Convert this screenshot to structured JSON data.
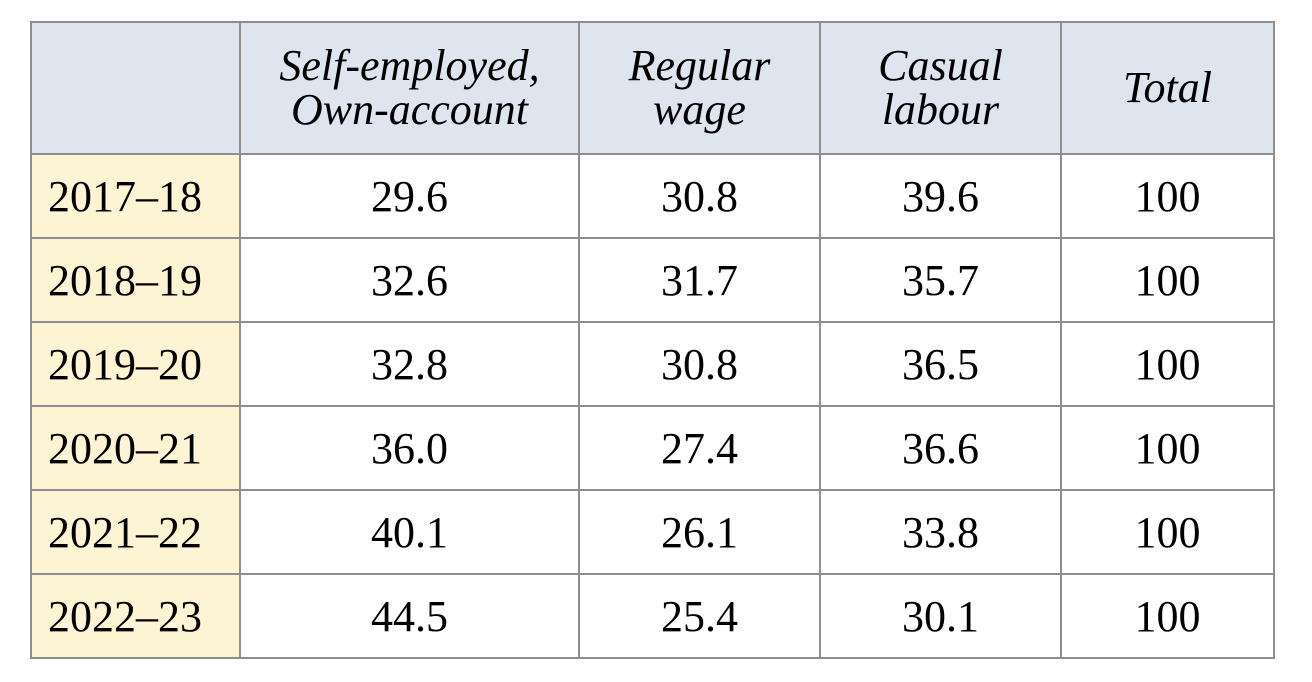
{
  "table": {
    "headers": {
      "corner": "",
      "self_employed": [
        "Self-employed,",
        "Own-account"
      ],
      "regular_wage": [
        "Regular",
        "wage"
      ],
      "casual_labour": [
        "Casual",
        "labour"
      ],
      "total": "Total"
    },
    "rows": [
      {
        "year": "2017–18",
        "self_employed": "29.6",
        "regular_wage": "30.8",
        "casual_labour": "39.6",
        "total": "100"
      },
      {
        "year": "2018–19",
        "self_employed": "32.6",
        "regular_wage": "31.7",
        "casual_labour": "35.7",
        "total": "100"
      },
      {
        "year": "2019–20",
        "self_employed": "32.8",
        "regular_wage": "30.8",
        "casual_labour": "36.5",
        "total": "100"
      },
      {
        "year": "2020–21",
        "self_employed": "36.0",
        "regular_wage": "27.4",
        "casual_labour": "36.6",
        "total": "100"
      },
      {
        "year": "2021–22",
        "self_employed": "40.1",
        "regular_wage": "26.1",
        "casual_labour": "33.8",
        "total": "100"
      },
      {
        "year": "2022–23",
        "self_employed": "44.5",
        "regular_wage": "25.4",
        "casual_labour": "30.1",
        "total": "100"
      }
    ]
  }
}
